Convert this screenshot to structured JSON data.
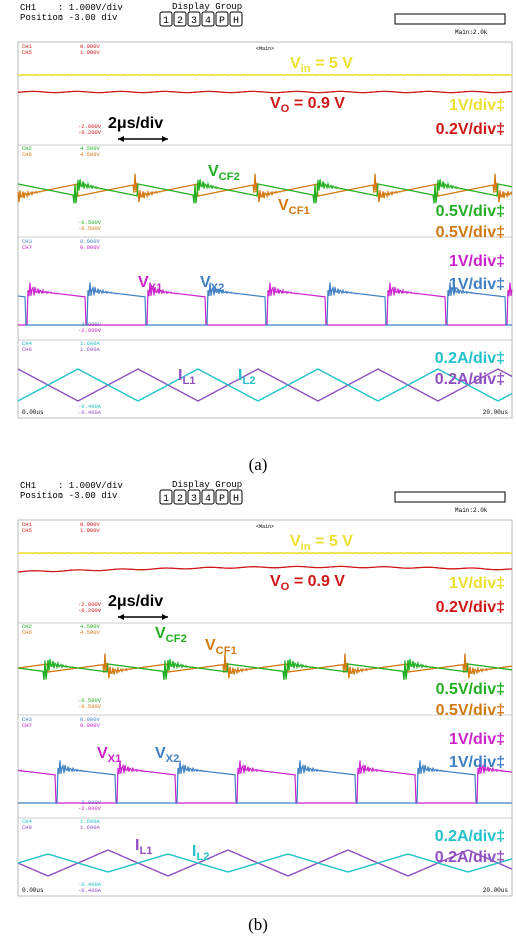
{
  "panels": [
    {
      "header": {
        "channel": "CH1",
        "scale": ": 1.000V/div",
        "position_label": "Position",
        "position": ": -3.00 div",
        "display_group": "Display Group",
        "buttons": [
          "1",
          "2",
          "3",
          "4",
          "P",
          "H"
        ],
        "zoom": "Main:2.0k",
        "main": "<Main>"
      },
      "channels": [
        [
          "CH1",
          "0.000V"
        ],
        [
          "CH5",
          "1.000V"
        ],
        [
          "CH2",
          "4.500V"
        ],
        [
          "CH6",
          "4.500V"
        ],
        [
          "CH3",
          "0.000V"
        ],
        [
          "CH7",
          "0.000V"
        ],
        [
          "CH4",
          "1.600A"
        ],
        [
          "CH8",
          "1.600A"
        ]
      ],
      "channel_bottoms": [
        [
          "-2.000V",
          "-0.200V"
        ],
        [
          "-0.500V",
          "-0.500V"
        ],
        [
          "-2.000V",
          "-2.000V"
        ],
        [
          "-0.400A",
          "-0.400A"
        ]
      ],
      "labels": {
        "vin": [
          "V",
          "in",
          " = 5 V"
        ],
        "vo": [
          "V",
          "O",
          " = 0.9 V"
        ],
        "vcf2": [
          "V",
          "CF2"
        ],
        "vcf1": [
          "V",
          "CF1"
        ],
        "vx1": [
          "V",
          "X1"
        ],
        "vx2": [
          "V",
          "X2"
        ],
        "il1": [
          "I",
          "L1"
        ],
        "il2": [
          "I",
          "L2"
        ]
      },
      "scales": [
        "1V/div‡",
        "0.2V/div‡",
        "0.5V/div‡",
        "0.5V/div‡",
        "1V/div‡",
        "1V/div‡",
        "0.2A/div‡",
        "0.2A/div‡"
      ],
      "time_div": "2μs/div",
      "time_start": "0.00us",
      "time_end": "20.00us",
      "caption": "(a)"
    },
    {
      "header": {
        "channel": "CH1",
        "scale": ": 1.000V/div",
        "position_label": "Position",
        "position": ": -3.00 div",
        "display_group": "Display Group",
        "buttons": [
          "1",
          "2",
          "3",
          "4",
          "P",
          "H"
        ],
        "zoom": "Main:2.0k",
        "main": "<Main>"
      },
      "channels": [
        [
          "CH1",
          "0.000V"
        ],
        [
          "CH5",
          "1.000V"
        ],
        [
          "CH2",
          "4.500V"
        ],
        [
          "CH6",
          "4.500V"
        ],
        [
          "CH3",
          "0.000V"
        ],
        [
          "CH7",
          "0.000V"
        ],
        [
          "CH4",
          "1.600A"
        ],
        [
          "CH8",
          "1.600A"
        ]
      ],
      "channel_bottoms": [
        [
          "-2.000V",
          "-0.200V"
        ],
        [
          "-0.500V",
          "-0.500V"
        ],
        [
          "-2.000V",
          "-2.000V"
        ],
        [
          "-0.400A",
          "-0.400A"
        ]
      ],
      "labels": {
        "vin": [
          "V",
          "in",
          " = 5 V"
        ],
        "vo": [
          "V",
          "O",
          " = 0.9 V"
        ],
        "vcf2": [
          "V",
          "CF2"
        ],
        "vcf1": [
          "V",
          "CF1"
        ],
        "vx1": [
          "V",
          "X1"
        ],
        "vx2": [
          "V",
          "X2"
        ],
        "il1": [
          "I",
          "L1"
        ],
        "il2": [
          "I",
          "L2"
        ]
      },
      "scales": [
        "1V/div‡",
        "0.2V/div‡",
        "0.5V/div‡",
        "0.5V/div‡",
        "1V/div‡",
        "1V/div‡",
        "0.2A/div‡",
        "0.2A/div‡"
      ],
      "time_div": "2μs/div",
      "time_start": "0.00us",
      "time_end": "20.00us",
      "caption": "(b)"
    }
  ]
}
